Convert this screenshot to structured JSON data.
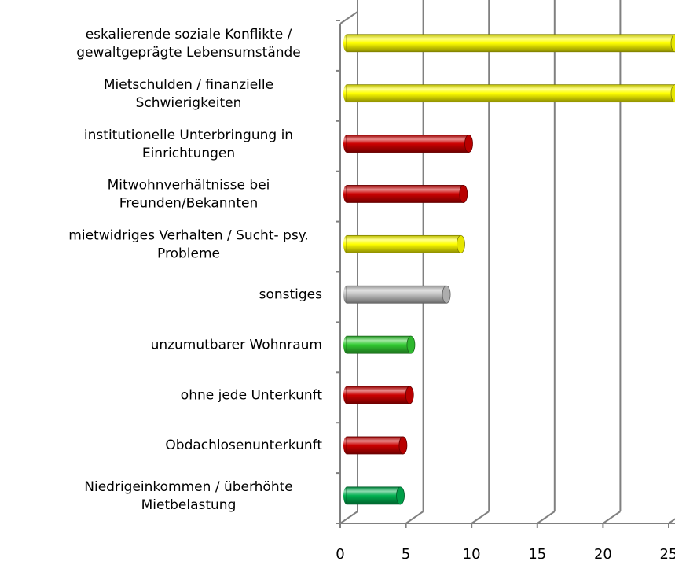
{
  "chart_data": {
    "type": "bar3d_horizontal",
    "categories": [
      [
        "eskalierende soziale Konflikte /",
        "gewaltgeprägte Lebensumstände"
      ],
      [
        "Mietschulden / finanzielle",
        "Schwierigkeiten"
      ],
      [
        "institutionelle Unterbringung in",
        "Einrichtungen"
      ],
      [
        "Mitwohnverhältnisse bei",
        "Freunden/Bekannten"
      ],
      [
        "mietwidriges Verhalten / Sucht- psy.",
        "Probleme"
      ],
      [
        "sonstiges"
      ],
      [
        "unzumutbarer Wohnraum"
      ],
      [
        "ohne jede Unterkunft"
      ],
      [
        "Obdachlosenunterkunft"
      ],
      [
        "Niedrigeinkommen / überhöhte",
        "Mietbelastung"
      ]
    ],
    "values": [
      25,
      25,
      9.3,
      8.9,
      8.7,
      7.6,
      4.9,
      4.8,
      4.3,
      4.1
    ],
    "colors": [
      "#ffff00",
      "#ffff00",
      "#cc0000",
      "#cc0000",
      "#ffff00",
      "#c0c0c0",
      "#33cc33",
      "#cc0000",
      "#cc0000",
      "#00b050"
    ],
    "xlim": [
      0,
      25
    ],
    "xticks": [
      0,
      5,
      10,
      15,
      20,
      25
    ],
    "grid": true
  }
}
